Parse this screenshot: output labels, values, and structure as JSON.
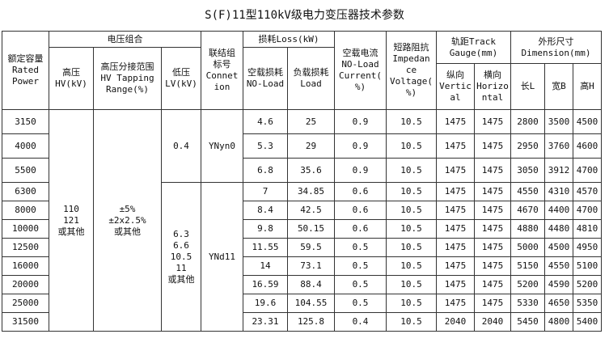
{
  "title": "S(F)11型110kV级电力变压器技术参数",
  "headers": {
    "rated_power": [
      "额定容量",
      "Rated",
      "Power"
    ],
    "voltage_group": "电压组合",
    "hv": [
      "高压",
      "HV(kV)"
    ],
    "tapping": [
      "高压分接范围",
      "HV Tapping",
      "Range(%)"
    ],
    "lv": [
      "低压",
      "LV(kV)"
    ],
    "connection": [
      "联结组",
      "标号",
      "Connet",
      "ion"
    ],
    "loss": "损耗Loss(kW)",
    "noload_loss": [
      "空载损耗",
      "NO-Load"
    ],
    "load_loss": [
      "负载损耗",
      "Load"
    ],
    "noload_current": [
      "空载电流",
      "NO-Load",
      "Current(",
      "%)"
    ],
    "impedance": [
      "短路阻抗",
      "Impedan",
      "ce",
      "Voltage(",
      "%)"
    ],
    "gauge": [
      "轨距Track",
      "Gauge(mm)"
    ],
    "vertical": [
      "纵向",
      "Vertic",
      "al"
    ],
    "horizontal": [
      "横向",
      "Horizo",
      "ntal"
    ],
    "dimension": [
      "外形尺寸",
      "Dimension(mm)"
    ],
    "length": "长L",
    "width": "宽B",
    "height": "高H"
  },
  "merged": {
    "hv": [
      "110",
      "121",
      "或其他"
    ],
    "tapping": [
      "±5%",
      "±2x2.5%",
      "或其他"
    ],
    "lv_a": "0.4",
    "lv_b": [
      "6.3",
      "6.6",
      "10.5",
      "11",
      "或其他"
    ],
    "conn_a": "YNyn0",
    "conn_b": "YNd11"
  },
  "rows": [
    {
      "power": "3150",
      "nl": "4.6",
      "ld": "25",
      "cur": "0.9",
      "imp": "10.5",
      "v": "1475",
      "h": "1475",
      "L": "2800",
      "B": "3500",
      "H": "4500"
    },
    {
      "power": "4000",
      "nl": "5.3",
      "ld": "29",
      "cur": "0.9",
      "imp": "10.5",
      "v": "1475",
      "h": "1475",
      "L": "2950",
      "B": "3760",
      "H": "4600"
    },
    {
      "power": "5500",
      "nl": "6.8",
      "ld": "35.6",
      "cur": "0.9",
      "imp": "10.5",
      "v": "1475",
      "h": "1475",
      "L": "3050",
      "B": "3912",
      "H": "4700"
    },
    {
      "power": "6300",
      "nl": "7",
      "ld": "34.85",
      "cur": "0.6",
      "imp": "10.5",
      "v": "1475",
      "h": "1475",
      "L": "4550",
      "B": "4310",
      "H": "4570"
    },
    {
      "power": "8000",
      "nl": "8.4",
      "ld": "42.5",
      "cur": "0.6",
      "imp": "10.5",
      "v": "1475",
      "h": "1475",
      "L": "4670",
      "B": "4400",
      "H": "4700"
    },
    {
      "power": "10000",
      "nl": "9.8",
      "ld": "50.15",
      "cur": "0.6",
      "imp": "10.5",
      "v": "1475",
      "h": "1475",
      "L": "4880",
      "B": "4480",
      "H": "4810"
    },
    {
      "power": "12500",
      "nl": "11.55",
      "ld": "59.5",
      "cur": "0.5",
      "imp": "10.5",
      "v": "1475",
      "h": "1475",
      "L": "5000",
      "B": "4500",
      "H": "4950"
    },
    {
      "power": "16000",
      "nl": "14",
      "ld": "73.1",
      "cur": "0.5",
      "imp": "10.5",
      "v": "1475",
      "h": "1475",
      "L": "5150",
      "B": "4550",
      "H": "5100"
    },
    {
      "power": "20000",
      "nl": "16.59",
      "ld": "88.4",
      "cur": "0.5",
      "imp": "10.5",
      "v": "1475",
      "h": "1475",
      "L": "5200",
      "B": "4590",
      "H": "5200"
    },
    {
      "power": "25000",
      "nl": "19.6",
      "ld": "104.55",
      "cur": "0.5",
      "imp": "10.5",
      "v": "1475",
      "h": "1475",
      "L": "5330",
      "B": "4650",
      "H": "5350"
    },
    {
      "power": "31500",
      "nl": "23.31",
      "ld": "125.8",
      "cur": "0.4",
      "imp": "10.5",
      "v": "2040",
      "h": "2040",
      "L": "5450",
      "B": "4800",
      "H": "5400"
    }
  ]
}
